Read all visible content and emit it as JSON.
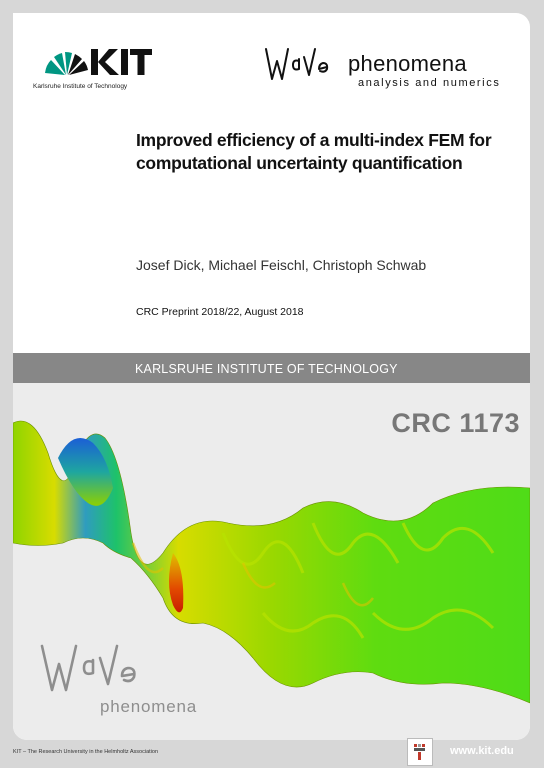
{
  "header": {
    "kit_logo_text": "KIT",
    "kit_subtitle": "Karlsruhe Institute of Technology",
    "wave_logo_text": "WaVe",
    "wave_title": "phenomena",
    "wave_subtitle": "analysis and numerics"
  },
  "paper": {
    "title": "Improved efficiency of a multi-index FEM for computational uncertainty quantification",
    "authors": "Josef Dick, Michael Feischl, Christoph Schwab",
    "preprint": "CRC Preprint 2018/22, August 2018"
  },
  "band": {
    "institute": "KARLSRUHE INSTITUTE OF TECHNOLOGY",
    "crc": "CRC 1173"
  },
  "bottom_logo": {
    "wave_text": "WaVe",
    "word": "phenomena"
  },
  "footer": {
    "left": "KIT – The Research University in the Helmholtz Association",
    "url": "www.kit.edu"
  },
  "colors": {
    "background": "#d7d7d7",
    "kit_green": "#009682",
    "band_gray": "#878787"
  }
}
